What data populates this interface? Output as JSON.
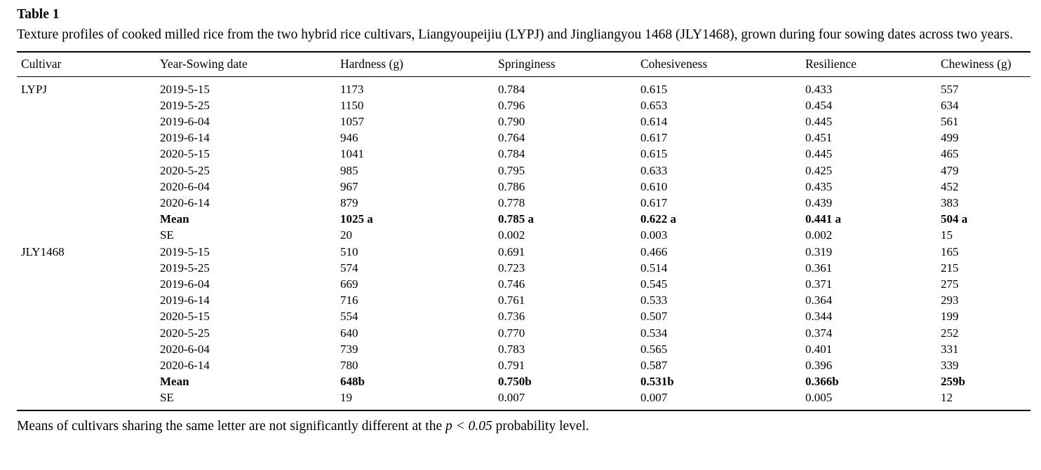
{
  "page": {
    "background": "#ffffff",
    "text_color": "#000000",
    "rule_color": "#000000"
  },
  "table": {
    "label": "Table 1",
    "caption": "Texture profiles of cooked milled rice from the two hybrid rice cultivars, Liangyoupeijiu (LYPJ) and Jingliangyou 1468 (JLY1468), grown during four sowing dates across two years.",
    "columns": [
      "Cultivar",
      "Year-Sowing date",
      "Hardness (g)",
      "Springiness",
      "Cohesiveness",
      "Resilience",
      "Chewiness (g)"
    ],
    "column_keys": [
      "cultivar",
      "year-sowing-date",
      "hardness",
      "springiness",
      "cohesiveness",
      "resilience",
      "chewiness"
    ],
    "rows": [
      {
        "cells": [
          "LYPJ",
          "2019-5-15",
          "1173",
          "0.784",
          "0.615",
          "0.433",
          "557"
        ],
        "bold": false
      },
      {
        "cells": [
          "",
          "2019-5-25",
          "1150",
          "0.796",
          "0.653",
          "0.454",
          "634"
        ],
        "bold": false
      },
      {
        "cells": [
          "",
          "2019-6-04",
          "1057",
          "0.790",
          "0.614",
          "0.445",
          "561"
        ],
        "bold": false
      },
      {
        "cells": [
          "",
          "2019-6-14",
          "946",
          "0.764",
          "0.617",
          "0.451",
          "499"
        ],
        "bold": false
      },
      {
        "cells": [
          "",
          "2020-5-15",
          "1041",
          "0.784",
          "0.615",
          "0.445",
          "465"
        ],
        "bold": false
      },
      {
        "cells": [
          "",
          "2020-5-25",
          "985",
          "0.795",
          "0.633",
          "0.425",
          "479"
        ],
        "bold": false
      },
      {
        "cells": [
          "",
          "2020-6-04",
          "967",
          "0.786",
          "0.610",
          "0.435",
          "452"
        ],
        "bold": false
      },
      {
        "cells": [
          "",
          "2020-6-14",
          "879",
          "0.778",
          "0.617",
          "0.439",
          "383"
        ],
        "bold": false
      },
      {
        "cells": [
          "",
          "Mean",
          "1025 a",
          "0.785 a",
          "0.622 a",
          "0.441 a",
          "504 a"
        ],
        "bold": true
      },
      {
        "cells": [
          "",
          "SE",
          "20",
          "0.002",
          "0.003",
          "0.002",
          "15"
        ],
        "bold": false
      },
      {
        "cells": [
          "JLY1468",
          "2019-5-15",
          "510",
          "0.691",
          "0.466",
          "0.319",
          "165"
        ],
        "bold": false
      },
      {
        "cells": [
          "",
          "2019-5-25",
          "574",
          "0.723",
          "0.514",
          "0.361",
          "215"
        ],
        "bold": false
      },
      {
        "cells": [
          "",
          "2019-6-04",
          "669",
          "0.746",
          "0.545",
          "0.371",
          "275"
        ],
        "bold": false
      },
      {
        "cells": [
          "",
          "2019-6-14",
          "716",
          "0.761",
          "0.533",
          "0.364",
          "293"
        ],
        "bold": false
      },
      {
        "cells": [
          "",
          "2020-5-15",
          "554",
          "0.736",
          "0.507",
          "0.344",
          "199"
        ],
        "bold": false
      },
      {
        "cells": [
          "",
          "2020-5-25",
          "640",
          "0.770",
          "0.534",
          "0.374",
          "252"
        ],
        "bold": false
      },
      {
        "cells": [
          "",
          "2020-6-04",
          "739",
          "0.783",
          "0.565",
          "0.401",
          "331"
        ],
        "bold": false
      },
      {
        "cells": [
          "",
          "2020-6-14",
          "780",
          "0.791",
          "0.587",
          "0.396",
          "339"
        ],
        "bold": false
      },
      {
        "cells": [
          "",
          "Mean",
          "648b",
          "0.750b",
          "0.531b",
          "0.366b",
          "259b"
        ],
        "bold": true
      },
      {
        "cells": [
          "",
          "SE",
          "19",
          "0.007",
          "0.007",
          "0.005",
          "12"
        ],
        "bold": false
      }
    ],
    "footnote": {
      "prefix": "Means of cultivars sharing the same letter are not significantly different at the ",
      "italic": "p < 0.05",
      "suffix": " probability level."
    }
  }
}
